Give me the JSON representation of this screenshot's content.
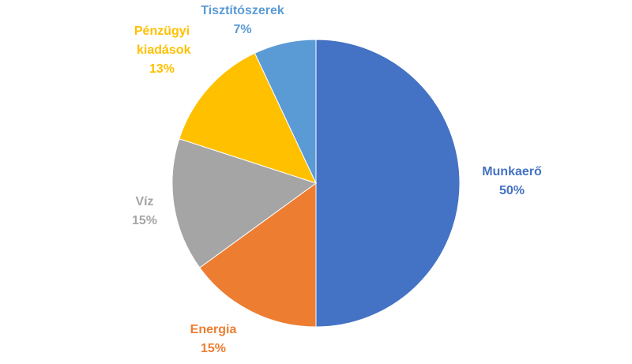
{
  "chart_data": {
    "type": "pie",
    "categories": [
      "Munkaerő",
      "Energia",
      "Víz",
      "Pénzügyi kiadások",
      "Tisztítószerek"
    ],
    "values": [
      50,
      15,
      15,
      13,
      7
    ],
    "value_labels": [
      "50%",
      "15%",
      "15%",
      "13%",
      "7%"
    ],
    "colors": [
      "#4472c4",
      "#ed7d31",
      "#a5a5a5",
      "#ffc000",
      "#5b9bd5"
    ]
  }
}
